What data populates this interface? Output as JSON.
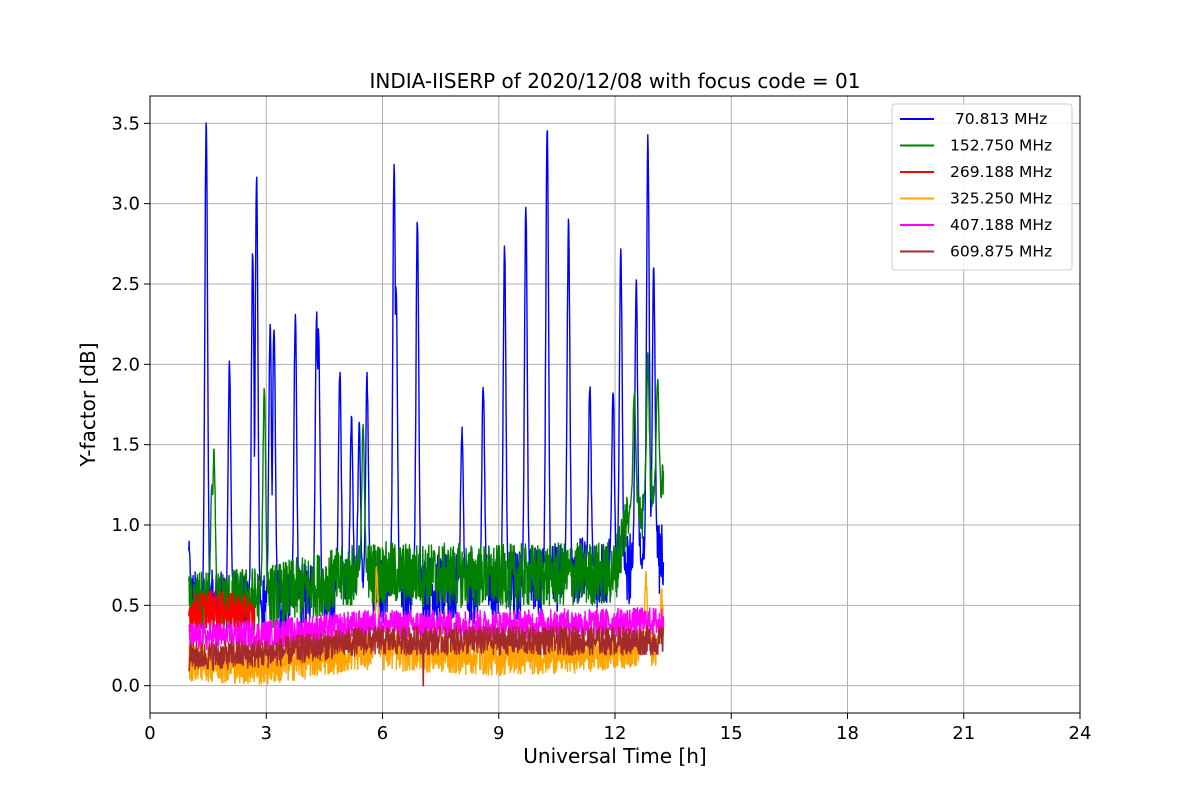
{
  "chart_data": {
    "type": "line",
    "title": "INDIA-IISERP of 2020/12/08 with focus code = 01",
    "xlabel": "Universal Time [h]",
    "ylabel": "Y-factor [dB]",
    "xlim": [
      0,
      24
    ],
    "ylim": [
      -0.17,
      3.67
    ],
    "xticks": [
      0,
      3,
      6,
      9,
      12,
      15,
      18,
      21,
      24
    ],
    "yticks": [
      0.0,
      0.5,
      1.0,
      1.5,
      2.0,
      2.5,
      3.0,
      3.5
    ],
    "grid": true,
    "legend_position": "top-right",
    "data_range_hours": [
      1.0,
      13.25
    ],
    "series": [
      {
        "name": " 70.813 MHz",
        "color": "#0000ff",
        "baseline_segments": [
          [
            1.0,
            0.5
          ],
          [
            3.0,
            0.5
          ],
          [
            5.5,
            0.6
          ],
          [
            9.0,
            0.6
          ],
          [
            11.0,
            0.7
          ],
          [
            12.0,
            0.7
          ],
          [
            13.25,
            0.8
          ]
        ],
        "noise_amplitude": 0.22,
        "peaks": [
          [
            1.0,
            0.86
          ],
          [
            1.45,
            3.5
          ],
          [
            2.05,
            2.0
          ],
          [
            2.65,
            2.7
          ],
          [
            2.75,
            3.15
          ],
          [
            3.1,
            2.25
          ],
          [
            3.2,
            2.26
          ],
          [
            3.75,
            2.3
          ],
          [
            4.3,
            2.3
          ],
          [
            4.35,
            2.2
          ],
          [
            4.9,
            1.97
          ],
          [
            5.2,
            1.65
          ],
          [
            5.4,
            1.6
          ],
          [
            5.6,
            1.93
          ],
          [
            6.3,
            3.25
          ],
          [
            6.35,
            2.5
          ],
          [
            6.9,
            2.9
          ],
          [
            8.05,
            1.6
          ],
          [
            8.6,
            1.88
          ],
          [
            9.15,
            2.75
          ],
          [
            9.7,
            3.0
          ],
          [
            10.25,
            3.5
          ],
          [
            10.8,
            2.87
          ],
          [
            11.35,
            1.87
          ],
          [
            11.95,
            1.8
          ],
          [
            12.15,
            2.7
          ],
          [
            12.55,
            2.5
          ],
          [
            12.85,
            3.4
          ],
          [
            13.0,
            2.6
          ]
        ]
      },
      {
        "name": "152.750 MHz",
        "color": "#008000",
        "baseline_segments": [
          [
            1.0,
            0.5
          ],
          [
            3.0,
            0.55
          ],
          [
            5.5,
            0.7
          ],
          [
            9.0,
            0.68
          ],
          [
            12.0,
            0.7
          ],
          [
            12.3,
            1.05
          ],
          [
            13.25,
            1.2
          ]
        ],
        "noise_amplitude": 0.2,
        "peaks": [
          [
            1.6,
            1.25
          ],
          [
            1.65,
            1.45
          ],
          [
            2.95,
            1.85
          ],
          [
            5.5,
            1.6
          ],
          [
            12.5,
            1.85
          ],
          [
            12.85,
            2.05
          ],
          [
            13.1,
            1.9
          ]
        ]
      },
      {
        "name": "269.188 MHz",
        "color": "#ff0000",
        "baseline_segments": [
          [
            1.0,
            0.45
          ],
          [
            1.5,
            0.48
          ],
          [
            2.5,
            0.45
          ],
          [
            2.7,
            0.4
          ]
        ],
        "noise_amplitude": 0.12,
        "peaks": []
      },
      {
        "name": "325.250 MHz",
        "color": "#ffa500",
        "baseline_segments": [
          [
            1.0,
            0.15
          ],
          [
            3.0,
            0.12
          ],
          [
            5.5,
            0.22
          ],
          [
            9.0,
            0.18
          ],
          [
            11.0,
            0.2
          ],
          [
            13.25,
            0.25
          ]
        ],
        "noise_amplitude": 0.12,
        "peaks": [
          [
            5.85,
            0.72
          ],
          [
            12.8,
            0.67
          ],
          [
            13.2,
            0.57
          ]
        ]
      },
      {
        "name": "407.188 MHz",
        "color": "#ff00ff",
        "baseline_segments": [
          [
            1.0,
            0.3
          ],
          [
            3.0,
            0.32
          ],
          [
            5.5,
            0.38
          ],
          [
            9.0,
            0.38
          ],
          [
            13.25,
            0.4
          ]
        ],
        "noise_amplitude": 0.09,
        "peaks": []
      },
      {
        "name": "609.875 MHz",
        "color": "#a52a2a",
        "baseline_segments": [
          [
            1.0,
            0.18
          ],
          [
            3.0,
            0.2
          ],
          [
            5.5,
            0.28
          ],
          [
            9.0,
            0.28
          ],
          [
            13.25,
            0.28
          ]
        ],
        "noise_amplitude": 0.09,
        "peaks": [],
        "dips": [
          [
            7.05,
            0.0
          ]
        ]
      }
    ]
  }
}
